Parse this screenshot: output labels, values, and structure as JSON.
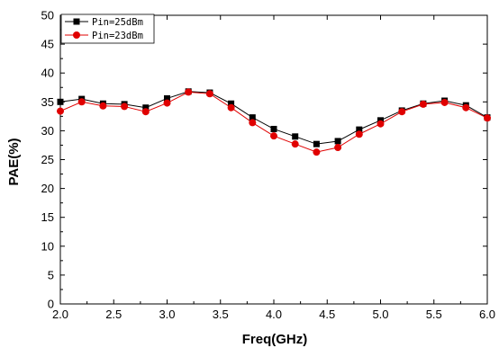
{
  "chart_data": {
    "type": "line",
    "title": "",
    "xlabel": "Freq(GHz)",
    "ylabel": "PAE(%)",
    "xlim": [
      2.0,
      6.0
    ],
    "ylim": [
      0,
      50
    ],
    "xticks": [
      "2.0",
      "2.5",
      "3.0",
      "3.5",
      "4.0",
      "4.5",
      "5.0",
      "5.5",
      "6.0"
    ],
    "yticks": [
      "0",
      "5",
      "10",
      "15",
      "20",
      "25",
      "30",
      "35",
      "40",
      "45",
      "50"
    ],
    "grid": false,
    "legend_position": "top-left",
    "series": [
      {
        "name": "Pin=25dBm",
        "color": "#000000",
        "marker": "square",
        "x": [
          2.0,
          2.2,
          2.4,
          2.6,
          2.8,
          3.0,
          3.2,
          3.4,
          3.6,
          3.8,
          4.0,
          4.2,
          4.4,
          4.6,
          4.8,
          5.0,
          5.2,
          5.4,
          5.6,
          5.8,
          6.0
        ],
        "y": [
          35.0,
          35.5,
          34.7,
          34.6,
          34.0,
          35.6,
          36.8,
          36.6,
          34.7,
          32.3,
          30.3,
          29.0,
          27.7,
          28.2,
          30.2,
          31.8,
          33.5,
          34.7,
          35.2,
          34.4,
          32.3
        ]
      },
      {
        "name": "Pin=23dBm",
        "color": "#e00000",
        "marker": "circle",
        "x": [
          2.0,
          2.2,
          2.4,
          2.6,
          2.8,
          3.0,
          3.2,
          3.4,
          3.6,
          3.8,
          4.0,
          4.2,
          4.4,
          4.6,
          4.8,
          5.0,
          5.2,
          5.4,
          5.6,
          5.8,
          6.0
        ],
        "y": [
          33.4,
          35.0,
          34.3,
          34.2,
          33.3,
          34.8,
          36.7,
          36.4,
          34.0,
          31.4,
          29.1,
          27.7,
          26.3,
          27.1,
          29.4,
          31.2,
          33.3,
          34.6,
          34.9,
          34.0,
          32.2
        ]
      }
    ]
  }
}
